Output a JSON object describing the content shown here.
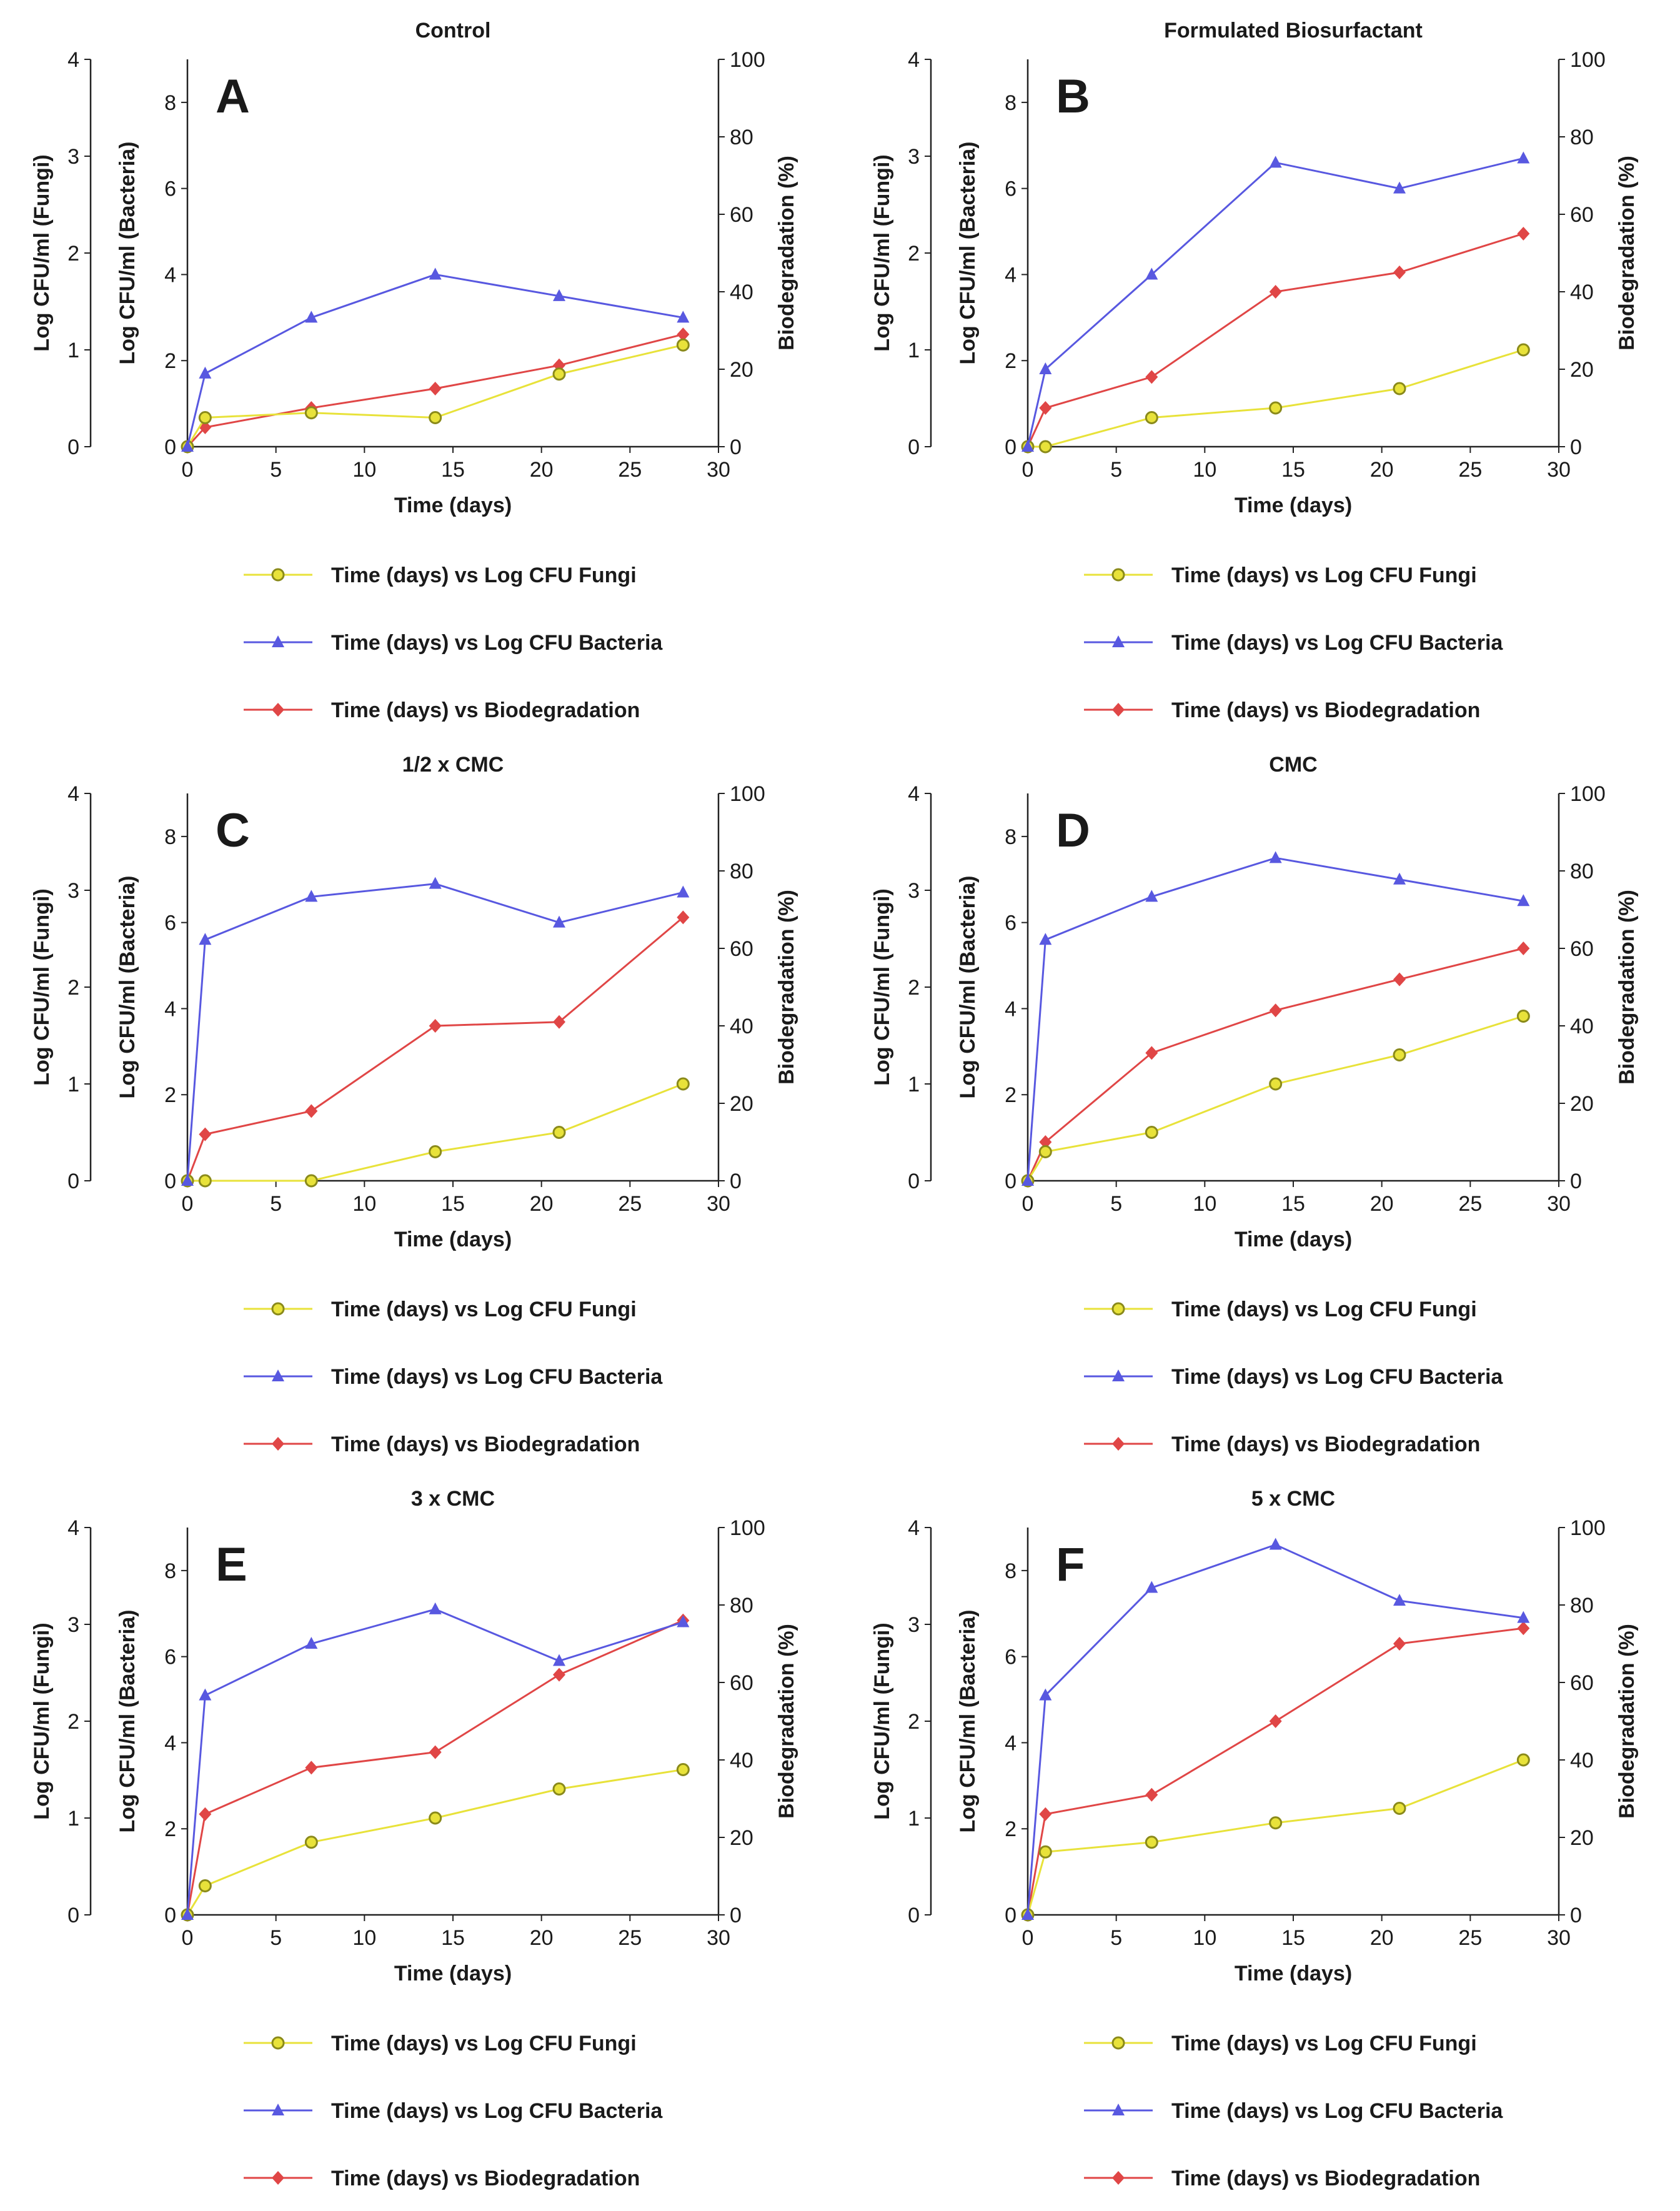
{
  "figure_title": "",
  "colors": {
    "fungi": "#e8e23a",
    "fungi_stroke": "#8a8a1a",
    "bacteria": "#5858e0",
    "biodegradation": "#e04646",
    "axis": "#222222"
  },
  "legend_labels": {
    "fungi": "Time (days) vs Log CFU Fungi",
    "bacteria": "Time (days) vs Log CFU Bacteria",
    "biodegradation": "Time (days) vs Biodegradation"
  },
  "axis_labels": {
    "x": "Time (days)",
    "y_fungi": "Log CFU/ml (Fungi)",
    "y_bacteria": "Log CFU/ml (Bacteria)",
    "y_right": "Biodegradation (%)"
  },
  "chart_data": [
    {
      "type": "line",
      "letter": "A",
      "title": "Control",
      "x": [
        0,
        1,
        7,
        14,
        21,
        28
      ],
      "xlim": [
        0,
        30
      ],
      "xticks": [
        0,
        5,
        10,
        15,
        20,
        25,
        30
      ],
      "fungi_ylim": [
        0,
        4
      ],
      "fungi_ticks": [
        0,
        1,
        2,
        3,
        4
      ],
      "bacteria_ylim": [
        0,
        9
      ],
      "bacteria_ticks": [
        0,
        2,
        4,
        6,
        8
      ],
      "right_ylim": [
        0,
        100
      ],
      "right_ticks": [
        0,
        20,
        40,
        60,
        80,
        100
      ],
      "series": [
        {
          "name": "fungi",
          "values": [
            0,
            0.3,
            0.35,
            0.3,
            0.75,
            1.05
          ]
        },
        {
          "name": "bacteria",
          "values": [
            0,
            1.7,
            3.0,
            4.0,
            3.5,
            3.0
          ]
        },
        {
          "name": "biodegradation",
          "values": [
            0,
            5,
            10,
            15,
            21,
            29
          ]
        }
      ]
    },
    {
      "type": "line",
      "letter": "B",
      "title": "Formulated Biosurfactant",
      "x": [
        0,
        1,
        7,
        14,
        21,
        28
      ],
      "xlim": [
        0,
        30
      ],
      "xticks": [
        0,
        5,
        10,
        15,
        20,
        25,
        30
      ],
      "fungi_ylim": [
        0,
        4
      ],
      "fungi_ticks": [
        0,
        1,
        2,
        3,
        4
      ],
      "bacteria_ylim": [
        0,
        9
      ],
      "bacteria_ticks": [
        0,
        2,
        4,
        6,
        8
      ],
      "right_ylim": [
        0,
        100
      ],
      "right_ticks": [
        0,
        20,
        40,
        60,
        80,
        100
      ],
      "series": [
        {
          "name": "fungi",
          "values": [
            0,
            0,
            0.3,
            0.4,
            0.6,
            1.0
          ]
        },
        {
          "name": "bacteria",
          "values": [
            0,
            1.8,
            4.0,
            6.6,
            6.0,
            6.7
          ]
        },
        {
          "name": "biodegradation",
          "values": [
            0,
            10,
            18,
            40,
            45,
            55
          ]
        }
      ]
    },
    {
      "type": "line",
      "letter": "C",
      "title": "1/2 x CMC",
      "x": [
        0,
        1,
        7,
        14,
        21,
        28
      ],
      "xlim": [
        0,
        30
      ],
      "xticks": [
        0,
        5,
        10,
        15,
        20,
        25,
        30
      ],
      "fungi_ylim": [
        0,
        4
      ],
      "fungi_ticks": [
        0,
        1,
        2,
        3,
        4
      ],
      "bacteria_ylim": [
        0,
        9
      ],
      "bacteria_ticks": [
        0,
        2,
        4,
        6,
        8
      ],
      "right_ylim": [
        0,
        100
      ],
      "right_ticks": [
        0,
        20,
        40,
        60,
        80,
        100
      ],
      "series": [
        {
          "name": "fungi",
          "values": [
            0,
            0,
            0,
            0.3,
            0.5,
            1.0
          ]
        },
        {
          "name": "bacteria",
          "values": [
            0,
            5.6,
            6.6,
            6.9,
            6.0,
            6.7
          ]
        },
        {
          "name": "biodegradation",
          "values": [
            0,
            12,
            18,
            40,
            41,
            68
          ]
        }
      ]
    },
    {
      "type": "line",
      "letter": "D",
      "title": "CMC",
      "x": [
        0,
        1,
        7,
        14,
        21,
        28
      ],
      "xlim": [
        0,
        30
      ],
      "xticks": [
        0,
        5,
        10,
        15,
        20,
        25,
        30
      ],
      "fungi_ylim": [
        0,
        4
      ],
      "fungi_ticks": [
        0,
        1,
        2,
        3,
        4
      ],
      "bacteria_ylim": [
        0,
        9
      ],
      "bacteria_ticks": [
        0,
        2,
        4,
        6,
        8
      ],
      "right_ylim": [
        0,
        100
      ],
      "right_ticks": [
        0,
        20,
        40,
        60,
        80,
        100
      ],
      "series": [
        {
          "name": "fungi",
          "values": [
            0,
            0.3,
            0.5,
            1.0,
            1.3,
            1.7
          ]
        },
        {
          "name": "bacteria",
          "values": [
            0,
            5.6,
            6.6,
            7.5,
            7.0,
            6.5
          ]
        },
        {
          "name": "biodegradation",
          "values": [
            0,
            10,
            33,
            44,
            52,
            60
          ]
        }
      ]
    },
    {
      "type": "line",
      "letter": "E",
      "title": "3 x CMC",
      "x": [
        0,
        1,
        7,
        14,
        21,
        28
      ],
      "xlim": [
        0,
        30
      ],
      "xticks": [
        0,
        5,
        10,
        15,
        20,
        25,
        30
      ],
      "fungi_ylim": [
        0,
        4
      ],
      "fungi_ticks": [
        0,
        1,
        2,
        3,
        4
      ],
      "bacteria_ylim": [
        0,
        9
      ],
      "bacteria_ticks": [
        0,
        2,
        4,
        6,
        8
      ],
      "right_ylim": [
        0,
        100
      ],
      "right_ticks": [
        0,
        20,
        40,
        60,
        80,
        100
      ],
      "series": [
        {
          "name": "fungi",
          "values": [
            0,
            0.3,
            0.75,
            1.0,
            1.3,
            1.5
          ]
        },
        {
          "name": "bacteria",
          "values": [
            0,
            5.1,
            6.3,
            7.1,
            5.9,
            6.8
          ]
        },
        {
          "name": "biodegradation",
          "values": [
            0,
            26,
            38,
            42,
            62,
            76
          ]
        }
      ]
    },
    {
      "type": "line",
      "letter": "F",
      "title": "5 x CMC",
      "x": [
        0,
        1,
        7,
        14,
        21,
        28
      ],
      "xlim": [
        0,
        30
      ],
      "xticks": [
        0,
        5,
        10,
        15,
        20,
        25,
        30
      ],
      "fungi_ylim": [
        0,
        4
      ],
      "fungi_ticks": [
        0,
        1,
        2,
        3,
        4
      ],
      "bacteria_ylim": [
        0,
        9
      ],
      "bacteria_ticks": [
        0,
        2,
        4,
        6,
        8
      ],
      "right_ylim": [
        0,
        100
      ],
      "right_ticks": [
        0,
        20,
        40,
        60,
        80,
        100
      ],
      "series": [
        {
          "name": "fungi",
          "values": [
            0,
            0.65,
            0.75,
            0.95,
            1.1,
            1.6
          ]
        },
        {
          "name": "bacteria",
          "values": [
            0,
            5.1,
            7.6,
            8.6,
            7.3,
            6.9
          ]
        },
        {
          "name": "biodegradation",
          "values": [
            0,
            26,
            31,
            50,
            70,
            74
          ]
        }
      ]
    }
  ]
}
